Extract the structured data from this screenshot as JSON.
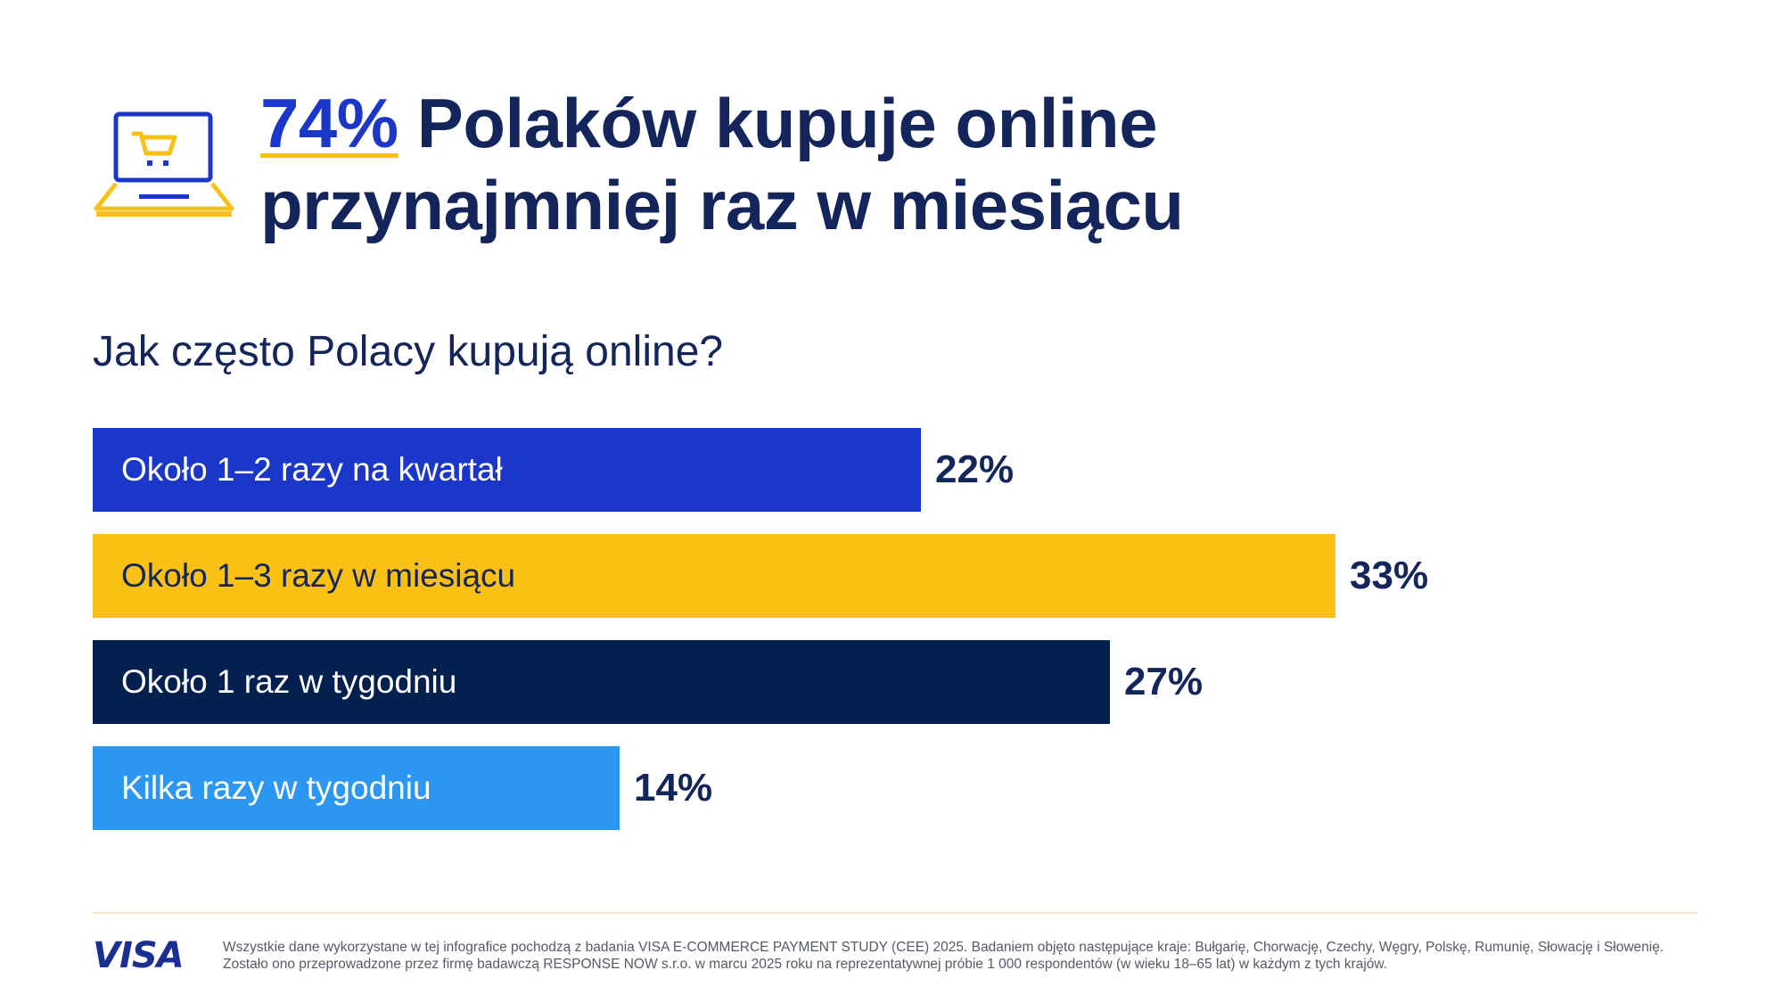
{
  "header": {
    "stat": "74%",
    "headline_rest": " Polaków kupuje online",
    "headline_line2": "przynajmniej raz w miesiącu",
    "icon": "laptop-cart-icon"
  },
  "question": "Jak często Polacy kupują online?",
  "chart_data": {
    "type": "bar",
    "orientation": "horizontal",
    "categories": [
      "Około 1–2 razy na kwartał",
      "Około 1–3 razy w miesiącu",
      "Około 1 raz w tygodniu",
      "Kilka razy w tygodniu"
    ],
    "values": [
      22,
      33,
      27,
      14
    ],
    "value_labels": [
      "22%",
      "33%",
      "27%",
      "14%"
    ],
    "colors": [
      "#1a37c9",
      "#fbc014",
      "#03204f",
      "#2b97f2"
    ],
    "unit": "%",
    "xlim": [
      0,
      33
    ],
    "grid": false,
    "legend": "none"
  },
  "footer": {
    "logo_text": "VISA",
    "note_line1": "Wszystkie dane wykorzystane w tej infografice pochodzą z badania VISA E-COMMERCE PAYMENT STUDY (CEE) 2025. Badaniem objęto następujące kraje: Bułgarię, Chorwację, Czechy, Węgry, Polskę, Rumunię, Słowację i Słowenię.",
    "note_line2": "Zostało ono przeprowadzone przez firmę badawczą RESPONSE NOW s.r.o. w marcu 2025 roku na reprezentatywnej próbie 1 000 respondentów (w wieku 18–65 lat) w każdym z tych krajów."
  },
  "colors": {
    "navy": "#13255a",
    "blue": "#1a37c9",
    "yellow": "#fbc014",
    "dark_navy": "#03204f",
    "light_blue": "#2b97f2"
  }
}
